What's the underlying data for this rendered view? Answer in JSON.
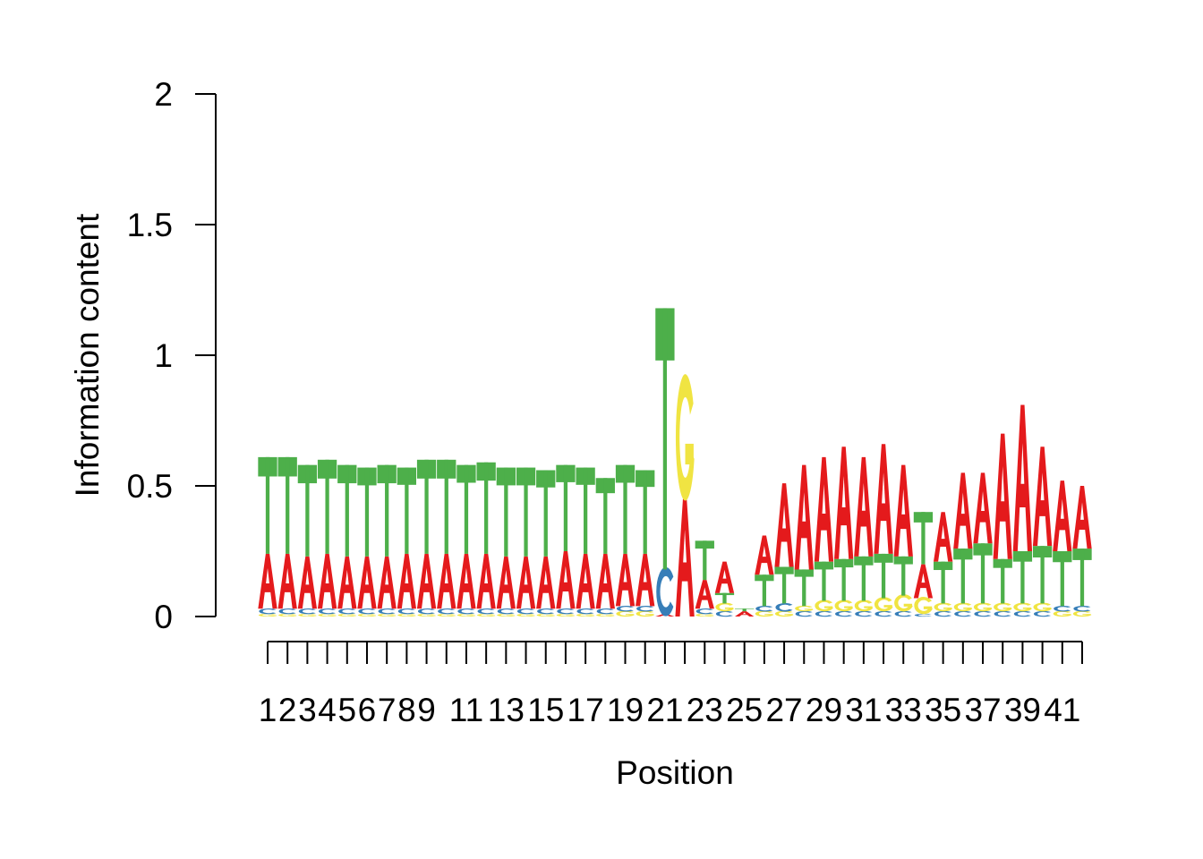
{
  "chart_data": {
    "type": "sequence-logo",
    "xlabel": "Position",
    "ylabel": "Information content",
    "ylim": [
      0,
      2
    ],
    "yticks": [
      "0",
      "0.5",
      "1",
      "1.5",
      "2"
    ],
    "xtick_labels": [
      "1",
      "2",
      "3",
      "4",
      "5",
      "6",
      "7",
      "8",
      "9",
      "",
      "11",
      "",
      "13",
      "",
      "15",
      "",
      "17",
      "",
      "19",
      "",
      "21",
      "",
      "23",
      "",
      "25",
      "",
      "27",
      "",
      "29",
      "",
      "31",
      "",
      "33",
      "",
      "35",
      "",
      "37",
      "",
      "39",
      "",
      "41"
    ],
    "colors": {
      "A": "#e41a1c",
      "C": "#377eb8",
      "G": "#f0e442",
      "T": "#4daf4a"
    },
    "positions": [
      {
        "pos": 1,
        "stack": [
          [
            "G",
            0.01
          ],
          [
            "C",
            0.02
          ],
          [
            "A",
            0.21
          ],
          [
            "T",
            0.37
          ]
        ]
      },
      {
        "pos": 2,
        "stack": [
          [
            "G",
            0.01
          ],
          [
            "C",
            0.02
          ],
          [
            "A",
            0.21
          ],
          [
            "T",
            0.37
          ]
        ]
      },
      {
        "pos": 3,
        "stack": [
          [
            "G",
            0.01
          ],
          [
            "C",
            0.02
          ],
          [
            "A",
            0.2
          ],
          [
            "T",
            0.35
          ]
        ]
      },
      {
        "pos": 4,
        "stack": [
          [
            "G",
            0.01
          ],
          [
            "C",
            0.02
          ],
          [
            "A",
            0.21
          ],
          [
            "T",
            0.36
          ]
        ]
      },
      {
        "pos": 5,
        "stack": [
          [
            "G",
            0.01
          ],
          [
            "C",
            0.02
          ],
          [
            "A",
            0.2
          ],
          [
            "T",
            0.35
          ]
        ]
      },
      {
        "pos": 6,
        "stack": [
          [
            "G",
            0.01
          ],
          [
            "C",
            0.02
          ],
          [
            "A",
            0.2
          ],
          [
            "T",
            0.34
          ]
        ]
      },
      {
        "pos": 7,
        "stack": [
          [
            "G",
            0.01
          ],
          [
            "C",
            0.02
          ],
          [
            "A",
            0.2
          ],
          [
            "T",
            0.35
          ]
        ]
      },
      {
        "pos": 8,
        "stack": [
          [
            "G",
            0.01
          ],
          [
            "C",
            0.02
          ],
          [
            "A",
            0.21
          ],
          [
            "T",
            0.33
          ]
        ]
      },
      {
        "pos": 9,
        "stack": [
          [
            "G",
            0.01
          ],
          [
            "C",
            0.02
          ],
          [
            "A",
            0.21
          ],
          [
            "T",
            0.36
          ]
        ]
      },
      {
        "pos": 10,
        "stack": [
          [
            "G",
            0.01
          ],
          [
            "C",
            0.02
          ],
          [
            "A",
            0.21
          ],
          [
            "T",
            0.36
          ]
        ]
      },
      {
        "pos": 11,
        "stack": [
          [
            "G",
            0.01
          ],
          [
            "C",
            0.02
          ],
          [
            "A",
            0.21
          ],
          [
            "T",
            0.34
          ]
        ]
      },
      {
        "pos": 12,
        "stack": [
          [
            "G",
            0.01
          ],
          [
            "C",
            0.02
          ],
          [
            "A",
            0.21
          ],
          [
            "T",
            0.35
          ]
        ]
      },
      {
        "pos": 13,
        "stack": [
          [
            "G",
            0.01
          ],
          [
            "C",
            0.02
          ],
          [
            "A",
            0.2
          ],
          [
            "T",
            0.34
          ]
        ]
      },
      {
        "pos": 14,
        "stack": [
          [
            "G",
            0.01
          ],
          [
            "C",
            0.02
          ],
          [
            "A",
            0.2
          ],
          [
            "T",
            0.34
          ]
        ]
      },
      {
        "pos": 15,
        "stack": [
          [
            "G",
            0.01
          ],
          [
            "C",
            0.02
          ],
          [
            "A",
            0.2
          ],
          [
            "T",
            0.33
          ]
        ]
      },
      {
        "pos": 16,
        "stack": [
          [
            "G",
            0.01
          ],
          [
            "C",
            0.02
          ],
          [
            "A",
            0.22
          ],
          [
            "T",
            0.33
          ]
        ]
      },
      {
        "pos": 17,
        "stack": [
          [
            "G",
            0.01
          ],
          [
            "C",
            0.02
          ],
          [
            "A",
            0.21
          ],
          [
            "T",
            0.33
          ]
        ]
      },
      {
        "pos": 18,
        "stack": [
          [
            "G",
            0.01
          ],
          [
            "C",
            0.02
          ],
          [
            "A",
            0.21
          ],
          [
            "T",
            0.29
          ]
        ]
      },
      {
        "pos": 19,
        "stack": [
          [
            "G",
            0.02
          ],
          [
            "C",
            0.02
          ],
          [
            "A",
            0.2
          ],
          [
            "T",
            0.34
          ]
        ]
      },
      {
        "pos": 20,
        "stack": [
          [
            "G",
            0.02
          ],
          [
            "C",
            0.02
          ],
          [
            "A",
            0.2
          ],
          [
            "T",
            0.32
          ]
        ]
      },
      {
        "pos": 21,
        "stack": [
          [
            "A",
            0.01
          ],
          [
            "C",
            0.17
          ],
          [
            "T",
            1.0
          ]
        ]
      },
      {
        "pos": 22,
        "stack": [
          [
            "A",
            0.45
          ],
          [
            "G",
            0.44
          ]
        ]
      },
      {
        "pos": 23,
        "stack": [
          [
            "G",
            0.01
          ],
          [
            "C",
            0.02
          ],
          [
            "A",
            0.11
          ],
          [
            "T",
            0.15
          ]
        ]
      },
      {
        "pos": 24,
        "stack": [
          [
            "C",
            0.02
          ],
          [
            "G",
            0.03
          ],
          [
            "T",
            0.04
          ],
          [
            "A",
            0.12
          ]
        ]
      },
      {
        "pos": 25,
        "stack": [
          [
            "A",
            0.02
          ],
          [
            "T",
            0.01
          ]
        ]
      },
      {
        "pos": 26,
        "stack": [
          [
            "G",
            0.02
          ],
          [
            "C",
            0.02
          ],
          [
            "T",
            0.12
          ],
          [
            "A",
            0.15
          ]
        ]
      },
      {
        "pos": 27,
        "stack": [
          [
            "G",
            0.02
          ],
          [
            "C",
            0.03
          ],
          [
            "T",
            0.14
          ],
          [
            "A",
            0.32
          ]
        ]
      },
      {
        "pos": 28,
        "stack": [
          [
            "C",
            0.02
          ],
          [
            "G",
            0.02
          ],
          [
            "T",
            0.14
          ],
          [
            "A",
            0.4
          ]
        ]
      },
      {
        "pos": 29,
        "stack": [
          [
            "C",
            0.02
          ],
          [
            "G",
            0.04
          ],
          [
            "T",
            0.15
          ],
          [
            "A",
            0.4
          ]
        ]
      },
      {
        "pos": 30,
        "stack": [
          [
            "C",
            0.02
          ],
          [
            "G",
            0.04
          ],
          [
            "T",
            0.16
          ],
          [
            "A",
            0.43
          ]
        ]
      },
      {
        "pos": 31,
        "stack": [
          [
            "C",
            0.02
          ],
          [
            "G",
            0.04
          ],
          [
            "T",
            0.17
          ],
          [
            "A",
            0.38
          ]
        ]
      },
      {
        "pos": 32,
        "stack": [
          [
            "C",
            0.02
          ],
          [
            "G",
            0.05
          ],
          [
            "T",
            0.17
          ],
          [
            "A",
            0.42
          ]
        ]
      },
      {
        "pos": 33,
        "stack": [
          [
            "C",
            0.02
          ],
          [
            "G",
            0.06
          ],
          [
            "T",
            0.15
          ],
          [
            "A",
            0.35
          ]
        ]
      },
      {
        "pos": 34,
        "stack": [
          [
            "C",
            0.01
          ],
          [
            "G",
            0.06
          ],
          [
            "A",
            0.13
          ],
          [
            "T",
            0.2
          ]
        ]
      },
      {
        "pos": 35,
        "stack": [
          [
            "C",
            0.02
          ],
          [
            "G",
            0.03
          ],
          [
            "T",
            0.16
          ],
          [
            "A",
            0.19
          ]
        ]
      },
      {
        "pos": 36,
        "stack": [
          [
            "C",
            0.02
          ],
          [
            "G",
            0.03
          ],
          [
            "T",
            0.21
          ],
          [
            "A",
            0.29
          ]
        ]
      },
      {
        "pos": 37,
        "stack": [
          [
            "C",
            0.02
          ],
          [
            "G",
            0.03
          ],
          [
            "T",
            0.23
          ],
          [
            "A",
            0.27
          ]
        ]
      },
      {
        "pos": 38,
        "stack": [
          [
            "C",
            0.02
          ],
          [
            "G",
            0.03
          ],
          [
            "T",
            0.17
          ],
          [
            "A",
            0.48
          ]
        ]
      },
      {
        "pos": 39,
        "stack": [
          [
            "C",
            0.02
          ],
          [
            "G",
            0.03
          ],
          [
            "T",
            0.2
          ],
          [
            "A",
            0.56
          ]
        ]
      },
      {
        "pos": 40,
        "stack": [
          [
            "C",
            0.02
          ],
          [
            "G",
            0.03
          ],
          [
            "T",
            0.22
          ],
          [
            "A",
            0.38
          ]
        ]
      },
      {
        "pos": 41,
        "stack": [
          [
            "G",
            0.02
          ],
          [
            "C",
            0.02
          ],
          [
            "T",
            0.21
          ],
          [
            "A",
            0.27
          ]
        ]
      },
      {
        "pos": 42,
        "stack": [
          [
            "G",
            0.02
          ],
          [
            "C",
            0.02
          ],
          [
            "T",
            0.22
          ],
          [
            "A",
            0.24
          ]
        ]
      }
    ]
  }
}
